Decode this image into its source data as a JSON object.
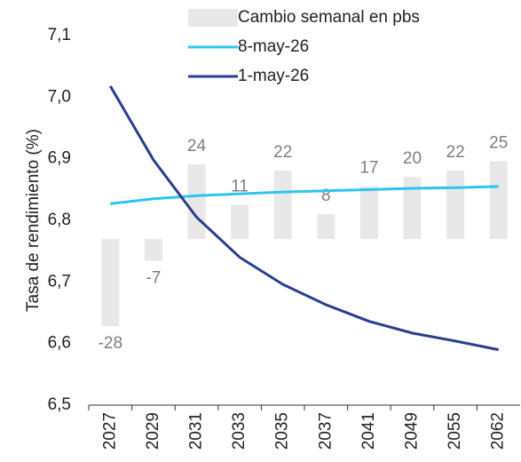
{
  "chart_data": {
    "type": "bar_line",
    "y_label": "Tasa de rendimiento (%)",
    "categories": [
      "2027",
      "2029",
      "2031",
      "2033",
      "2035",
      "2037",
      "2041",
      "2049",
      "2055",
      "2062"
    ],
    "ylim": [
      6.5,
      7.1
    ],
    "yticks": [
      {
        "value": 6.5,
        "label": "6,5"
      },
      {
        "value": 6.6,
        "label": "6,6"
      },
      {
        "value": 6.7,
        "label": "6,7"
      },
      {
        "value": 6.8,
        "label": "6,8"
      },
      {
        "value": 6.9,
        "label": "6,9"
      },
      {
        "value": 7.0,
        "label": "7,0"
      },
      {
        "value": 7.1,
        "label": "7,1"
      }
    ],
    "y2lim": [
      -53.4,
      65.4
    ],
    "legend": "top-right",
    "series": [
      {
        "name": "Cambio semanal en pbs",
        "type": "bar",
        "axis": "y2",
        "color": "#e8e8e8",
        "values": [
          -28,
          -7,
          24,
          11,
          22,
          8,
          17,
          20,
          22,
          25
        ]
      },
      {
        "name": "8-may-26",
        "type": "line",
        "color": "#2ec4f1",
        "values": [
          6.827,
          6.835,
          6.84,
          6.843,
          6.846,
          6.848,
          6.85,
          6.852,
          6.853,
          6.855
        ]
      },
      {
        "name": "1-may-26",
        "type": "line",
        "color": "#2a3f8f",
        "values": [
          7.018,
          6.898,
          6.805,
          6.74,
          6.696,
          6.663,
          6.636,
          6.617,
          6.604,
          6.59
        ]
      }
    ]
  }
}
